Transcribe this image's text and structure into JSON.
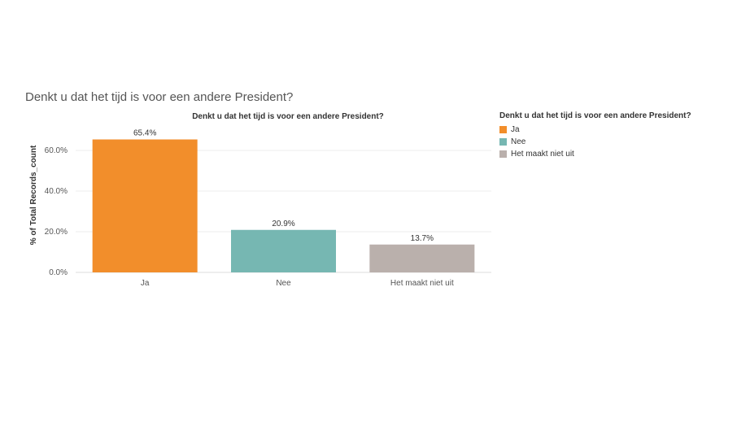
{
  "page": {
    "title": "Denkt u dat het tijd is voor een andere President?"
  },
  "chart_data": {
    "type": "bar",
    "title": "Denkt u dat het tijd is voor een andere President?",
    "xlabel": "",
    "ylabel": "% of Total Records_count",
    "ylim": [
      0,
      70
    ],
    "yticks": [
      0,
      20,
      40,
      60
    ],
    "ytick_labels": [
      "0.0%",
      "20.0%",
      "40.0%",
      "60.0%"
    ],
    "grid": true,
    "categories": [
      "Ja",
      "Nee",
      "Het maakt niet uit"
    ],
    "values": [
      65.4,
      20.9,
      13.7
    ],
    "value_labels": [
      "65.4%",
      "20.9%",
      "13.7%"
    ],
    "colors": [
      "#f28e2b",
      "#76b7b2",
      "#bab0ac"
    ],
    "legend": {
      "title": "Denkt u dat het tijd is voor een andere President?",
      "position": "right",
      "items": [
        "Ja",
        "Nee",
        "Het maakt niet uit"
      ]
    }
  }
}
